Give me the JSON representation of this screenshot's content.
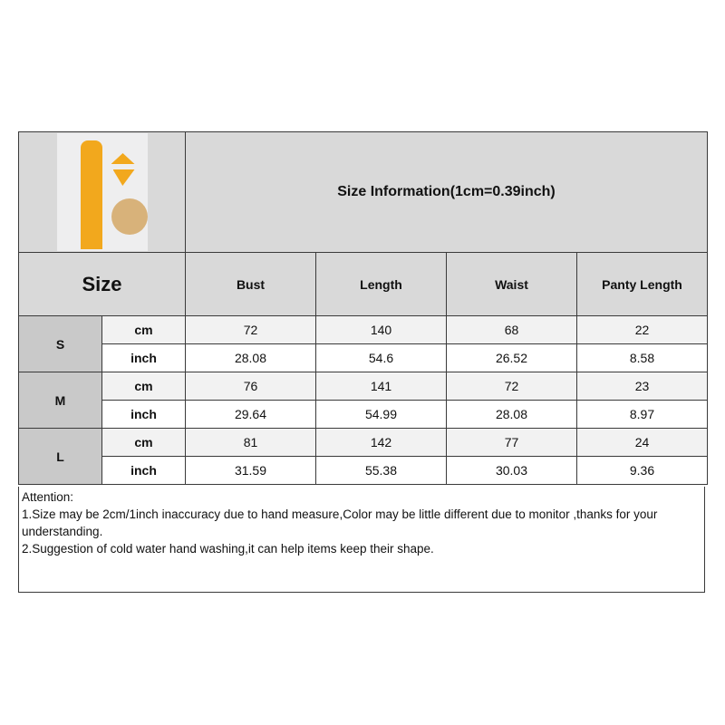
{
  "title": "Size Information(1cm=0.39inch)",
  "size_header": "Size",
  "columns": [
    "Bust",
    "Length",
    "Waist",
    "Panty Length"
  ],
  "sizes": [
    {
      "size": "S",
      "rows": [
        {
          "unit": "cm",
          "values": [
            "72",
            "140",
            "68",
            "22"
          ]
        },
        {
          "unit": "inch",
          "values": [
            "28.08",
            "54.6",
            "26.52",
            "8.58"
          ]
        }
      ]
    },
    {
      "size": "M",
      "rows": [
        {
          "unit": "cm",
          "values": [
            "76",
            "141",
            "72",
            "23"
          ]
        },
        {
          "unit": "inch",
          "values": [
            "29.64",
            "54.99",
            "28.08",
            "8.97"
          ]
        }
      ]
    },
    {
      "size": "L",
      "rows": [
        {
          "unit": "cm",
          "values": [
            "81",
            "142",
            "77",
            "24"
          ]
        },
        {
          "unit": "inch",
          "values": [
            "31.59",
            "55.38",
            "30.03",
            "9.36"
          ]
        }
      ]
    }
  ],
  "notes": {
    "heading": "Attention:",
    "line1": "1.Size may be 2cm/1inch inaccuracy due to hand measure,Color may be little different due to monitor ,thanks for your understanding.",
    "line2": "2.Suggestion of cold water hand washing,it can help items keep their shape."
  },
  "colors": {
    "header_gray": "#d9d9d9",
    "size_gray": "#c9c9c9",
    "cm_row": "#f2f2f2",
    "product": "#f2a81d"
  }
}
